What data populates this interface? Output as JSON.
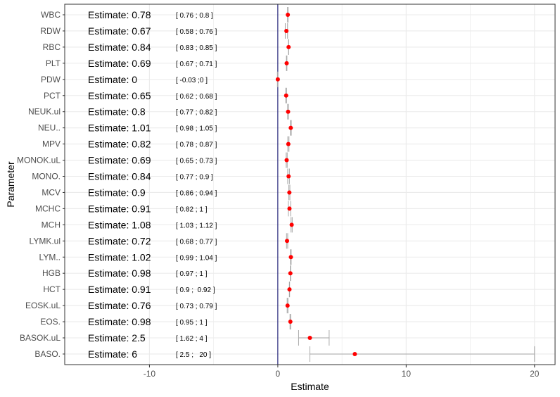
{
  "chart_data": {
    "type": "scatter",
    "xlabel": "Estimate",
    "ylabel": "Parameter",
    "xlim": [
      -16.6,
      21.6
    ],
    "x_ticks": [
      -10,
      0,
      10,
      20
    ],
    "x_tick_labels": [
      "-10",
      "0",
      "10",
      "20"
    ],
    "reference_line_x": 0,
    "grid": true,
    "colors": {
      "point": "#ff0000",
      "errorbar": "#a6a6a6",
      "refline": "#000066",
      "grid": "#ebebeb",
      "panel_border": "#333333"
    },
    "rows": [
      {
        "parameter": "WBC",
        "estimate": 0.78,
        "lower": 0.76,
        "upper": 0.8,
        "label": "Estimate: 0.78",
        "ci_label": "[ 0.76 ; 0.8 ]"
      },
      {
        "parameter": "RDW",
        "estimate": 0.67,
        "lower": 0.58,
        "upper": 0.76,
        "label": "Estimate: 0.67",
        "ci_label": "[ 0.58 ; 0.76 ]"
      },
      {
        "parameter": "RBC",
        "estimate": 0.84,
        "lower": 0.83,
        "upper": 0.85,
        "label": "Estimate: 0.84",
        "ci_label": "[ 0.83 ; 0.85 ]"
      },
      {
        "parameter": "PLT",
        "estimate": 0.69,
        "lower": 0.67,
        "upper": 0.71,
        "label": "Estimate: 0.69",
        "ci_label": "[ 0.67 ; 0.71 ]"
      },
      {
        "parameter": "PDW",
        "estimate": 0,
        "lower": -0.03,
        "upper": 0,
        "label": "Estimate: 0",
        "ci_label": "[ -0.03 ;0 ]"
      },
      {
        "parameter": "PCT",
        "estimate": 0.65,
        "lower": 0.62,
        "upper": 0.68,
        "label": "Estimate: 0.65",
        "ci_label": "[ 0.62 ; 0.68 ]"
      },
      {
        "parameter": "NEUK.ul",
        "estimate": 0.8,
        "lower": 0.77,
        "upper": 0.82,
        "label": "Estimate: 0.8",
        "ci_label": "[ 0.77 ; 0.82 ]"
      },
      {
        "parameter": "NEU..",
        "estimate": 1.01,
        "lower": 0.98,
        "upper": 1.05,
        "label": "Estimate: 1.01",
        "ci_label": "[ 0.98 ; 1.05 ]"
      },
      {
        "parameter": "MPV",
        "estimate": 0.82,
        "lower": 0.78,
        "upper": 0.87,
        "label": "Estimate: 0.82",
        "ci_label": "[ 0.78 ; 0.87 ]"
      },
      {
        "parameter": "MONOK.uL",
        "estimate": 0.69,
        "lower": 0.65,
        "upper": 0.73,
        "label": "Estimate: 0.69",
        "ci_label": "[ 0.65 ; 0.73 ]"
      },
      {
        "parameter": "MONO.",
        "estimate": 0.84,
        "lower": 0.77,
        "upper": 0.9,
        "label": "Estimate: 0.84",
        "ci_label": "[ 0.77 ; 0.9 ]"
      },
      {
        "parameter": "MCV",
        "estimate": 0.9,
        "lower": 0.86,
        "upper": 0.94,
        "label": "Estimate: 0.9",
        "ci_label": "[ 0.86 ; 0.94 ]"
      },
      {
        "parameter": "MCHC",
        "estimate": 0.91,
        "lower": 0.82,
        "upper": 1,
        "label": "Estimate: 0.91",
        "ci_label": "[ 0.82 ; 1 ]"
      },
      {
        "parameter": "MCH",
        "estimate": 1.08,
        "lower": 1.03,
        "upper": 1.12,
        "label": "Estimate: 1.08",
        "ci_label": "[ 1.03 ; 1.12 ]"
      },
      {
        "parameter": "LYMK.ul",
        "estimate": 0.72,
        "lower": 0.68,
        "upper": 0.77,
        "label": "Estimate: 0.72",
        "ci_label": "[ 0.68 ; 0.77 ]"
      },
      {
        "parameter": "LYM..",
        "estimate": 1.02,
        "lower": 0.99,
        "upper": 1.04,
        "label": "Estimate: 1.02",
        "ci_label": "[ 0.99 ; 1.04 ]"
      },
      {
        "parameter": "HGB",
        "estimate": 0.98,
        "lower": 0.97,
        "upper": 1,
        "label": "Estimate: 0.98",
        "ci_label": "[ 0.97 ; 1 ]"
      },
      {
        "parameter": "HCT",
        "estimate": 0.91,
        "lower": 0.9,
        "upper": 0.92,
        "label": "Estimate: 0.91",
        "ci_label": "[ 0.9 ;  0.92 ]"
      },
      {
        "parameter": "EOSK.uL",
        "estimate": 0.76,
        "lower": 0.73,
        "upper": 0.79,
        "label": "Estimate: 0.76",
        "ci_label": "[ 0.73 ; 0.79 ]"
      },
      {
        "parameter": "EOS.",
        "estimate": 0.98,
        "lower": 0.95,
        "upper": 1,
        "label": "Estimate: 0.98",
        "ci_label": "[ 0.95 ; 1 ]"
      },
      {
        "parameter": "BASOK.uL",
        "estimate": 2.5,
        "lower": 1.62,
        "upper": 4,
        "label": "Estimate: 2.5",
        "ci_label": "[ 1.62 ; 4 ]"
      },
      {
        "parameter": "BASO.",
        "estimate": 6,
        "lower": 2.5,
        "upper": 20,
        "label": "Estimate: 6",
        "ci_label": "[ 2.5 ;   20 ]"
      }
    ]
  }
}
